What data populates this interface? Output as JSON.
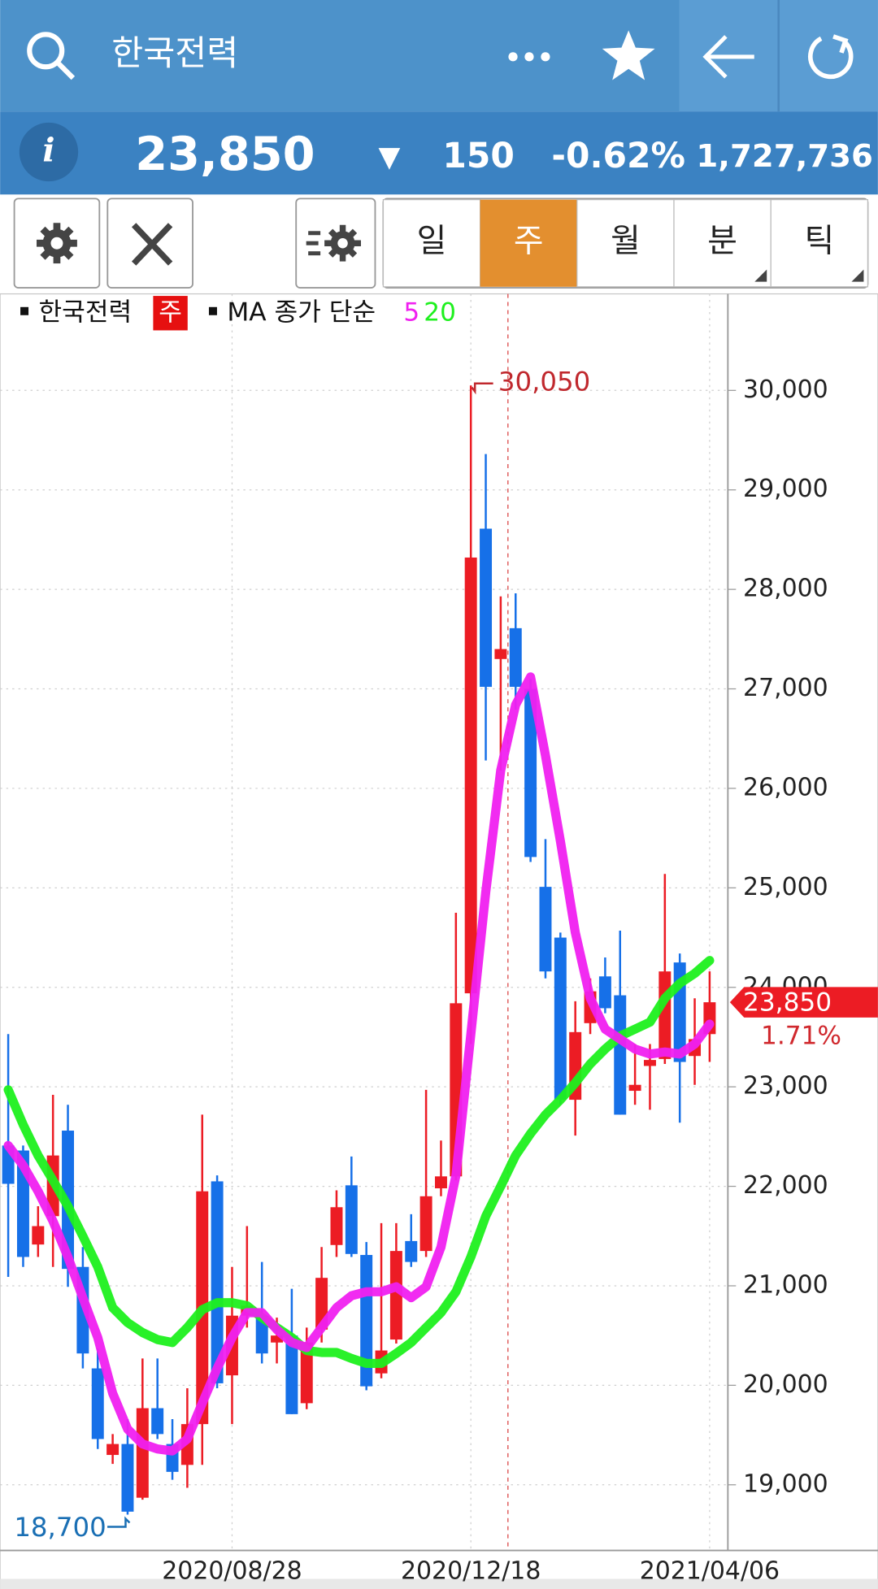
{
  "header": {
    "title": "한국전력"
  },
  "quote": {
    "price": "23,850",
    "direction": "▼",
    "change": "150",
    "change_pct": "-0.62%",
    "volume": "1,727,736"
  },
  "tabs": [
    "일",
    "주",
    "월",
    "분",
    "틱"
  ],
  "chart_data": {
    "type": "candlestick",
    "legend": {
      "name": "한국전력",
      "period": "주",
      "ma_label": "MA 종가 단순"
    },
    "categories": [
      null,
      null,
      null,
      null,
      null,
      null,
      null,
      null,
      null,
      null,
      null,
      null,
      null,
      null,
      null,
      "2020/08/28",
      null,
      null,
      null,
      null,
      null,
      null,
      null,
      null,
      null,
      null,
      null,
      null,
      null,
      null,
      null,
      "2020/12/18",
      null,
      null,
      null,
      null,
      null,
      null,
      null,
      null,
      null,
      null,
      null,
      null,
      null,
      null,
      null,
      "2021/04/06"
    ],
    "open": [
      22410,
      22360,
      21415,
      21700,
      22560,
      21190,
      20170,
      19300,
      19410,
      18870,
      19770,
      19410,
      19200,
      19610,
      22050,
      20100,
      20700,
      20700,
      20430,
      20500,
      19820,
      20560,
      21410,
      22010,
      21310,
      20120,
      20460,
      21450,
      21350,
      21980,
      22100,
      23940,
      28610,
      27300,
      27610,
      27000,
      25010,
      24500,
      22870,
      23640,
      24110,
      23920,
      22960,
      23210,
      23280,
      24250,
      23310,
      23530
    ],
    "high": [
      23530,
      22410,
      21800,
      22920,
      22820,
      21390,
      20370,
      19510,
      19660,
      20270,
      20270,
      19660,
      19970,
      22720,
      22110,
      21190,
      21600,
      21240,
      20680,
      20970,
      20580,
      21390,
      21960,
      22300,
      21440,
      21630,
      21630,
      21720,
      22970,
      22460,
      24750,
      30050,
      29360,
      27930,
      27960,
      27100,
      25490,
      24550,
      23860,
      24090,
      24300,
      24570,
      23430,
      23430,
      25140,
      24340,
      23890,
      24160
    ],
    "low": [
      21090,
      21190,
      21290,
      21190,
      20990,
      20170,
      19360,
      19210,
      18700,
      18850,
      19460,
      19050,
      18970,
      19200,
      19970,
      19610,
      20580,
      20220,
      20220,
      19710,
      19760,
      20430,
      21290,
      21290,
      19950,
      20070,
      20420,
      21190,
      21290,
      21900,
      22060,
      23430,
      26280,
      26180,
      26790,
      25260,
      24090,
      22820,
      22510,
      23530,
      23740,
      22720,
      22820,
      22770,
      23230,
      22640,
      23020,
      23250
    ],
    "close": [
      22025,
      21290,
      21600,
      22310,
      21170,
      20320,
      19460,
      19410,
      18730,
      19770,
      19510,
      19130,
      19610,
      21950,
      20020,
      20700,
      20800,
      20320,
      20500,
      19710,
      20430,
      21080,
      21790,
      21320,
      19990,
      20350,
      21350,
      21240,
      21900,
      22100,
      23840,
      28320,
      27020,
      27400,
      27020,
      25310,
      24160,
      22870,
      23550,
      23960,
      23790,
      22720,
      23020,
      23270,
      24160,
      23250,
      23480,
      23850
    ],
    "up_color": "#ec1c24",
    "down_color": "#1670e8",
    "series": [
      {
        "name": "5",
        "color": "#f020f0",
        "values": [
          22410,
          22210,
          21950,
          21650,
          21290,
          20880,
          20480,
          19920,
          19560,
          19410,
          19360,
          19340,
          19460,
          19820,
          20170,
          20480,
          20730,
          20730,
          20560,
          20430,
          20380,
          20580,
          20780,
          20900,
          20940,
          20940,
          20990,
          20880,
          20990,
          21390,
          22110,
          23530,
          24960,
          26180,
          26840,
          27120,
          26330,
          25470,
          24550,
          23890,
          23580,
          23480,
          23380,
          23330,
          23350,
          23330,
          23430,
          23630
        ]
      },
      {
        "name": "20",
        "color": "#1ef01e",
        "values": [
          22970,
          22620,
          22310,
          22060,
          21800,
          21500,
          21190,
          20780,
          20630,
          20530,
          20460,
          20430,
          20580,
          20760,
          20830,
          20830,
          20800,
          20680,
          20580,
          20480,
          20350,
          20330,
          20330,
          20270,
          20220,
          20220,
          20320,
          20430,
          20580,
          20730,
          20940,
          21290,
          21700,
          22000,
          22310,
          22530,
          22720,
          22870,
          23040,
          23230,
          23380,
          23510,
          23580,
          23650,
          23890,
          24040,
          24140,
          24270
        ]
      }
    ],
    "ylim": [
      18360,
      30970
    ],
    "yticks": [
      {
        "value": 19000,
        "label": "19,000"
      },
      {
        "value": 20000,
        "label": "20,000"
      },
      {
        "value": 21000,
        "label": "21,000"
      },
      {
        "value": 22000,
        "label": "22,000"
      },
      {
        "value": 23000,
        "label": "23,000"
      },
      {
        "value": 24000,
        "label": "24,000"
      },
      {
        "value": 25000,
        "label": "25,000"
      },
      {
        "value": 26000,
        "label": "26,000"
      },
      {
        "value": 27000,
        "label": "27,000"
      },
      {
        "value": 28000,
        "label": "28,000"
      },
      {
        "value": 29000,
        "label": "29,000"
      },
      {
        "value": 30000,
        "label": "30,000"
      }
    ],
    "grid": true,
    "high_marker": {
      "value": 30050,
      "label": "30,050"
    },
    "low_marker": {
      "value": 18700,
      "label": "18,700"
    },
    "last_price": {
      "value": 23850,
      "label": "23,850"
    },
    "last_change": "1.71%"
  }
}
